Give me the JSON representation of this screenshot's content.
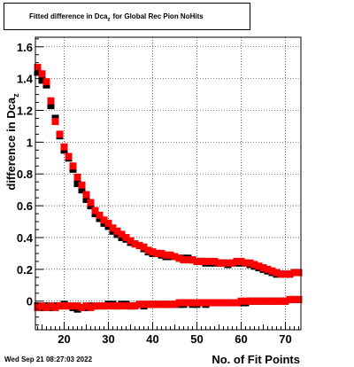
{
  "chart_data": {
    "type": "scatter",
    "title": "Fitted difference in Dca",
    "title_subscript": "z",
    "title_suffix": "for Global Rec Pion NoHits",
    "xlabel": "No. of Fit Points",
    "ylabel": "difference in Dca",
    "ylabel_subscript": "z",
    "xlim": [
      13.5,
      73.5
    ],
    "ylim": [
      -0.18,
      1.66
    ],
    "xticks": [
      20,
      30,
      40,
      50,
      60,
      70
    ],
    "yticks": [
      0,
      0.2,
      0.4,
      0.6,
      0.8,
      1,
      1.2,
      1.4,
      1.6
    ],
    "ytick_labels": [
      "0",
      "0.2",
      "0.4",
      "0.6",
      "0.8",
      "1",
      "1.2",
      "1.4",
      "1.6"
    ],
    "xtick_labels": [
      "20",
      "30",
      "40",
      "50",
      "60",
      "70"
    ],
    "grid": true,
    "series": [
      {
        "color": "#000000",
        "x": [
          14,
          15,
          16,
          17,
          18,
          19,
          20,
          21,
          22,
          23,
          24,
          25,
          26,
          27,
          28,
          29,
          30,
          31,
          32,
          33,
          34,
          35,
          36,
          37,
          38,
          39,
          40,
          41,
          42,
          43,
          44,
          45,
          46,
          47,
          48,
          49,
          50,
          51,
          52,
          53,
          54,
          55,
          56,
          57,
          58,
          59,
          60,
          61,
          62,
          63,
          64,
          65,
          66,
          67,
          68,
          69,
          70,
          71,
          72,
          73
        ],
        "y": [
          1.44,
          1.39,
          1.36,
          1.23,
          1.15,
          1.04,
          0.95,
          0.9,
          0.83,
          0.74,
          0.7,
          0.64,
          0.6,
          0.55,
          0.52,
          0.49,
          0.47,
          0.44,
          0.42,
          0.4,
          0.39,
          0.37,
          0.36,
          0.35,
          0.33,
          0.31,
          0.3,
          0.3,
          0.29,
          0.28,
          0.28,
          0.28,
          0.27,
          0.27,
          0.27,
          0.26,
          0.25,
          0.25,
          0.24,
          0.24,
          0.24,
          0.24,
          0.24,
          0.23,
          0.24,
          0.24,
          0.24,
          0.24,
          0.23,
          0.22,
          0.21,
          0.2,
          0.19,
          0.18,
          0.17,
          0.17,
          0.17,
          0.17,
          0.18,
          0.18
        ]
      },
      {
        "color": "#000000",
        "x": [
          14,
          15,
          16,
          17,
          18,
          19,
          20,
          21,
          22,
          23,
          24,
          25,
          26,
          27,
          28,
          29,
          30,
          31,
          32,
          33,
          34,
          35,
          36,
          37,
          38,
          39,
          40,
          41,
          42,
          43,
          44,
          45,
          46,
          47,
          48,
          49,
          50,
          51,
          52,
          53,
          54,
          55,
          56,
          57,
          58,
          59,
          60,
          61,
          62,
          63,
          64,
          65,
          66,
          67,
          68,
          69,
          70,
          71,
          72,
          73
        ],
        "y": [
          -0.03,
          -0.04,
          -0.03,
          -0.04,
          -0.03,
          -0.03,
          -0.02,
          -0.03,
          -0.04,
          -0.05,
          -0.04,
          -0.04,
          -0.03,
          -0.03,
          -0.03,
          -0.03,
          -0.02,
          -0.02,
          -0.03,
          -0.02,
          -0.02,
          -0.03,
          -0.03,
          -0.02,
          -0.03,
          -0.02,
          -0.02,
          -0.02,
          -0.02,
          -0.02,
          -0.02,
          -0.02,
          -0.02,
          -0.02,
          -0.01,
          -0.02,
          -0.02,
          -0.01,
          -0.02,
          -0.01,
          -0.01,
          -0.01,
          -0.01,
          -0.01,
          -0.01,
          -0.01,
          -0.01,
          -0.01,
          0,
          0,
          0,
          0,
          0,
          0,
          0,
          0,
          0,
          0.01,
          0.01,
          0.01
        ]
      },
      {
        "color": "#ff0000",
        "x": [
          14,
          15,
          16,
          17,
          18,
          19,
          20,
          21,
          22,
          23,
          24,
          25,
          26,
          27,
          28,
          29,
          30,
          31,
          32,
          33,
          34,
          35,
          36,
          37,
          38,
          39,
          40,
          41,
          42,
          43,
          44,
          45,
          46,
          47,
          48,
          49,
          50,
          51,
          52,
          53,
          54,
          55,
          56,
          57,
          58,
          59,
          60,
          61,
          62,
          63,
          64,
          65,
          66,
          67,
          68,
          69,
          70,
          71,
          72,
          73
        ],
        "y": [
          1.47,
          1.43,
          1.38,
          1.26,
          1.13,
          1.05,
          0.97,
          0.91,
          0.85,
          0.78,
          0.73,
          0.67,
          0.62,
          0.57,
          0.54,
          0.51,
          0.49,
          0.46,
          0.44,
          0.42,
          0.4,
          0.38,
          0.36,
          0.35,
          0.34,
          0.32,
          0.31,
          0.3,
          0.3,
          0.29,
          0.29,
          0.28,
          0.27,
          0.26,
          0.26,
          0.26,
          0.25,
          0.25,
          0.25,
          0.25,
          0.25,
          0.24,
          0.24,
          0.24,
          0.24,
          0.25,
          0.25,
          0.24,
          0.24,
          0.23,
          0.22,
          0.21,
          0.2,
          0.19,
          0.18,
          0.17,
          0.17,
          0.17,
          0.18,
          0.18
        ]
      },
      {
        "color": "#ff0000",
        "x": [
          14,
          15,
          16,
          17,
          18,
          19,
          20,
          21,
          22,
          23,
          24,
          25,
          26,
          27,
          28,
          29,
          30,
          31,
          32,
          33,
          34,
          35,
          36,
          37,
          38,
          39,
          40,
          41,
          42,
          43,
          44,
          45,
          46,
          47,
          48,
          49,
          50,
          51,
          52,
          53,
          54,
          55,
          56,
          57,
          58,
          59,
          60,
          61,
          62,
          63,
          64,
          65,
          66,
          67,
          68,
          69,
          70,
          71,
          72,
          73
        ],
        "y": [
          -0.04,
          -0.03,
          -0.04,
          -0.03,
          -0.04,
          -0.03,
          -0.03,
          -0.03,
          -0.03,
          -0.03,
          -0.04,
          -0.03,
          -0.04,
          -0.03,
          -0.03,
          -0.03,
          -0.03,
          -0.03,
          -0.03,
          -0.03,
          -0.03,
          -0.03,
          -0.03,
          -0.02,
          -0.02,
          -0.02,
          -0.02,
          -0.02,
          -0.02,
          -0.02,
          -0.02,
          -0.02,
          -0.01,
          -0.01,
          -0.01,
          -0.01,
          -0.01,
          -0.01,
          -0.01,
          -0.01,
          -0.01,
          -0.01,
          -0.01,
          -0.01,
          -0.01,
          -0.01,
          0,
          0,
          0,
          0,
          0,
          0,
          0,
          0,
          0,
          0,
          0,
          0.01,
          0.01,
          0.01
        ]
      }
    ]
  },
  "footer": {
    "date": "Wed Sep 21 08:27:03 2022"
  }
}
